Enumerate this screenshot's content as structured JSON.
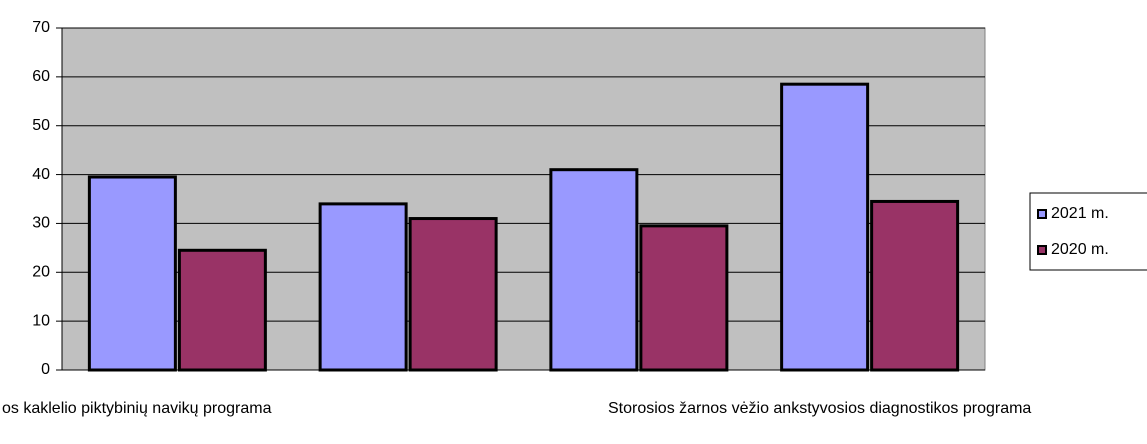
{
  "chart_data": {
    "type": "bar",
    "categories": [
      "os kaklelio piktybinių navikų programa",
      null,
      "Storosios žarnos vėžio ankstyvosios diagnostikos programa",
      null
    ],
    "series": [
      {
        "name": "2021 m.",
        "color": "#9999ff",
        "values": [
          39.5,
          34,
          41,
          58.5
        ]
      },
      {
        "name": "2020 m.",
        "color": "#993366",
        "values": [
          24.5,
          31,
          29.5,
          34.5
        ]
      }
    ],
    "ylim": [
      0,
      70
    ],
    "yticks": [
      0,
      10,
      20,
      30,
      40,
      50,
      60,
      70
    ],
    "grid": true,
    "legend": "right"
  }
}
